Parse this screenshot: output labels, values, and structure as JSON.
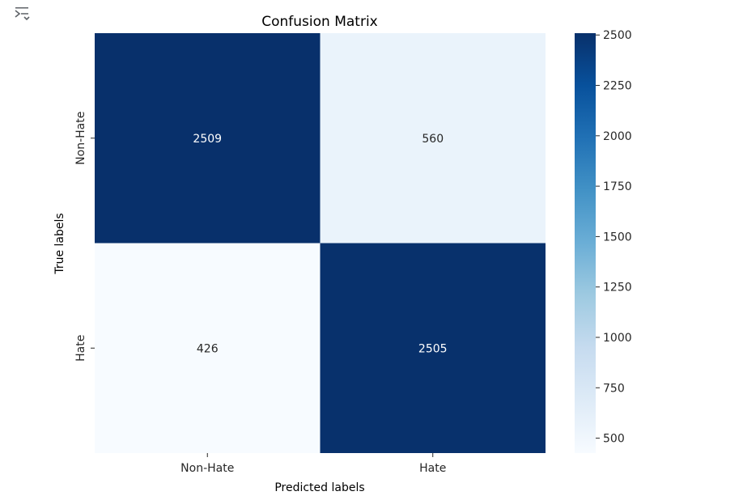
{
  "output_icon": "output-expand-icon",
  "chart_data": {
    "type": "heatmap",
    "title": "Confusion Matrix",
    "xlabel": "Predicted labels",
    "ylabel": "True labels",
    "x_categories": [
      "Non-Hate",
      "Hate"
    ],
    "y_categories": [
      "Non-Hate",
      "Hate"
    ],
    "values": [
      [
        2509,
        560
      ],
      [
        426,
        2505
      ]
    ],
    "colormap": "Blues",
    "colors": {
      "low": "#f7fbff",
      "high": "#08306b"
    },
    "colorbar": {
      "range": [
        426,
        2509
      ],
      "ticks": [
        500,
        750,
        1000,
        1250,
        1500,
        1750,
        2000,
        2250,
        2500
      ]
    },
    "annotations": true
  }
}
